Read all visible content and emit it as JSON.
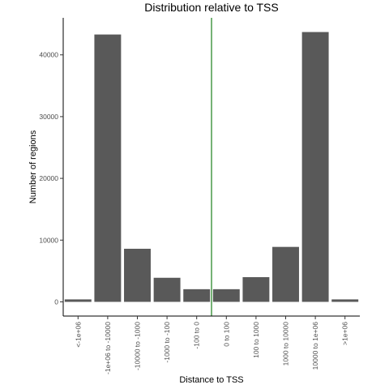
{
  "chart_data": {
    "type": "bar",
    "title": "Distribution relative to TSS",
    "xlabel": "Distance to TSS",
    "ylabel": "Number of regions",
    "categories": [
      "<-1e+06",
      "-1e+06 to -10000",
      "-10000 to -1000",
      "-1000 to -100",
      "-100 to 0",
      "0 to 100",
      "100 to 1000",
      "1000 to 10000",
      "10000 to 1e+06",
      ">1e+06"
    ],
    "values": [
      400,
      43300,
      8600,
      3900,
      2050,
      2050,
      4000,
      8900,
      43700,
      400
    ],
    "yticks": [
      0,
      10000,
      20000,
      30000,
      40000
    ],
    "ylim": [
      -2300,
      46000
    ],
    "grid": false,
    "reference_line_color": "#1a7f1a",
    "bar_color": "#595959"
  }
}
